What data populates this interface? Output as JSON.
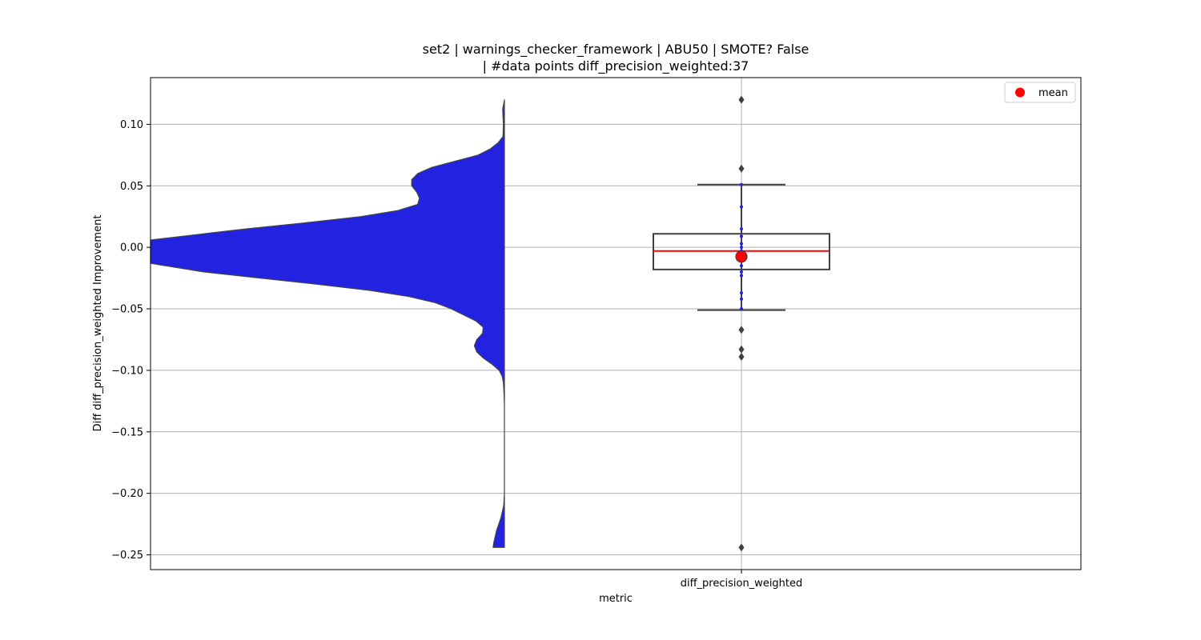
{
  "chart_data": {
    "type": "violin+box+strip",
    "title_line1": "set2 | warnings_checker_framework | ABU50 | SMOTE? False",
    "title_line2": "| #data points diff_precision_weighted:37",
    "xlabel": "metric",
    "ylabel": "Diff diff_precision_weighted Improvement",
    "categories": [
      "diff_precision_weighted"
    ],
    "ylim": [
      -0.262,
      0.138
    ],
    "yticks": [
      0.1,
      0.05,
      0.0,
      -0.05,
      -0.1,
      -0.15,
      -0.2,
      -0.25
    ],
    "ytick_labels": [
      "0.10",
      "0.05",
      "0.00",
      "−0.05",
      "−0.10",
      "−0.15",
      "−0.20",
      "−0.25"
    ],
    "grid": true,
    "legend": {
      "placement": "top-right",
      "entries": [
        {
          "label": "mean",
          "color": "#ff0000"
        }
      ]
    },
    "violin": {
      "color": "#2222e0",
      "side": "left-half",
      "range": [
        -0.244,
        0.12
      ],
      "density_profile": [
        [
          0.12,
          0.0
        ],
        [
          0.112,
          0.005
        ],
        [
          0.1,
          0.003
        ],
        [
          0.09,
          0.004
        ],
        [
          0.085,
          0.018
        ],
        [
          0.08,
          0.04
        ],
        [
          0.075,
          0.075
        ],
        [
          0.07,
          0.14
        ],
        [
          0.065,
          0.205
        ],
        [
          0.06,
          0.245
        ],
        [
          0.055,
          0.262
        ],
        [
          0.05,
          0.262
        ],
        [
          0.045,
          0.248
        ],
        [
          0.04,
          0.24
        ],
        [
          0.035,
          0.245
        ],
        [
          0.03,
          0.3
        ],
        [
          0.025,
          0.405
        ],
        [
          0.02,
          0.56
        ],
        [
          0.015,
          0.73
        ],
        [
          0.01,
          0.88
        ],
        [
          0.006,
          1.0
        ],
        [
          0.0,
          1.0
        ],
        [
          -0.005,
          1.0
        ],
        [
          -0.013,
          1.0
        ],
        [
          -0.02,
          0.85
        ],
        [
          -0.025,
          0.69
        ],
        [
          -0.03,
          0.53
        ],
        [
          -0.035,
          0.38
        ],
        [
          -0.04,
          0.27
        ],
        [
          -0.045,
          0.195
        ],
        [
          -0.05,
          0.15
        ],
        [
          -0.055,
          0.115
        ],
        [
          -0.06,
          0.08
        ],
        [
          -0.065,
          0.06
        ],
        [
          -0.07,
          0.062
        ],
        [
          -0.075,
          0.078
        ],
        [
          -0.08,
          0.085
        ],
        [
          -0.085,
          0.078
        ],
        [
          -0.09,
          0.06
        ],
        [
          -0.095,
          0.035
        ],
        [
          -0.1,
          0.015
        ],
        [
          -0.105,
          0.006
        ],
        [
          -0.11,
          0.003
        ],
        [
          -0.12,
          0.001
        ],
        [
          -0.13,
          0.0
        ],
        [
          -0.2,
          0.0
        ],
        [
          -0.21,
          0.002
        ],
        [
          -0.22,
          0.01
        ],
        [
          -0.23,
          0.022
        ],
        [
          -0.24,
          0.03
        ],
        [
          -0.244,
          0.032
        ]
      ]
    },
    "box": {
      "q1": -0.018,
      "median": -0.003,
      "q3": 0.011,
      "whisker_low": -0.051,
      "whisker_high": 0.051,
      "mean": -0.0075,
      "median_color": "#ff0000",
      "edge_color": "#3f3f3f"
    },
    "outliers": [
      0.12,
      0.064,
      -0.067,
      -0.083,
      -0.089,
      -0.244
    ],
    "strip_points": [
      0.051,
      0.033,
      0.015,
      0.009,
      0.003,
      0.0,
      -0.003,
      -0.007,
      -0.01,
      -0.015,
      -0.02,
      -0.023,
      -0.037,
      -0.042,
      -0.05
    ],
    "strip_color": "#2222e0",
    "mean_marker_color": "#ff0000"
  }
}
